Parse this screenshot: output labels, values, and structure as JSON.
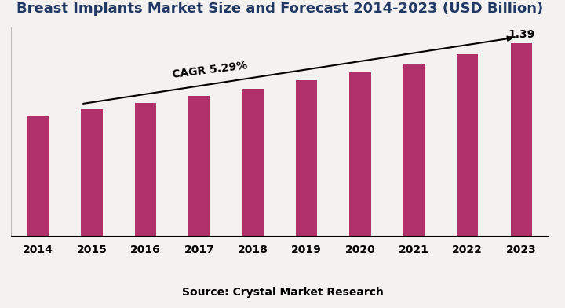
{
  "chart_data": {
    "type": "bar",
    "title": "Breast Implants Market Size and Forecast 2014-2023 (USD Billion)",
    "categories": [
      "2014",
      "2015",
      "2016",
      "2017",
      "2018",
      "2019",
      "2020",
      "2021",
      "2022",
      "2023"
    ],
    "values": [
      0.86,
      0.91,
      0.96,
      1.01,
      1.06,
      1.12,
      1.18,
      1.24,
      1.31,
      1.39
    ],
    "value_labels": [
      null,
      null,
      null,
      null,
      null,
      null,
      null,
      null,
      null,
      "1.39"
    ],
    "annotations": [
      "CAGR 5.29%",
      "Source: Crystal Market Research"
    ],
    "color": "#b0306a",
    "ylim": [
      0,
      1.5
    ],
    "tick_labels": "x",
    "grid": false
  }
}
